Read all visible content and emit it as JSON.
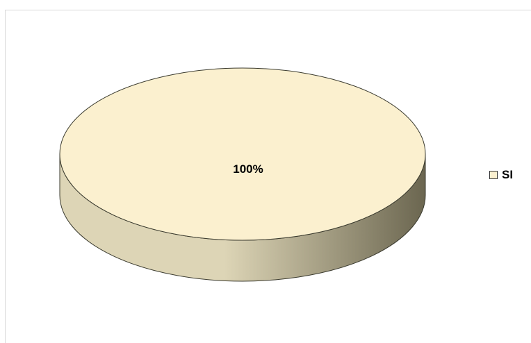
{
  "chart_data": {
    "type": "pie",
    "title": "",
    "categories": [
      "SI"
    ],
    "values": [
      100
    ],
    "data_labels": [
      "100%"
    ],
    "colors": {
      "SI": "#fbf0cf",
      "side_light": "#ddd5b6",
      "side_dark": "#6b6650",
      "outline": "#3a3a2e"
    },
    "legend": {
      "position": "right",
      "entries": [
        {
          "label": "SI",
          "color": "#fbf0cf"
        }
      ]
    },
    "three_d": true
  }
}
